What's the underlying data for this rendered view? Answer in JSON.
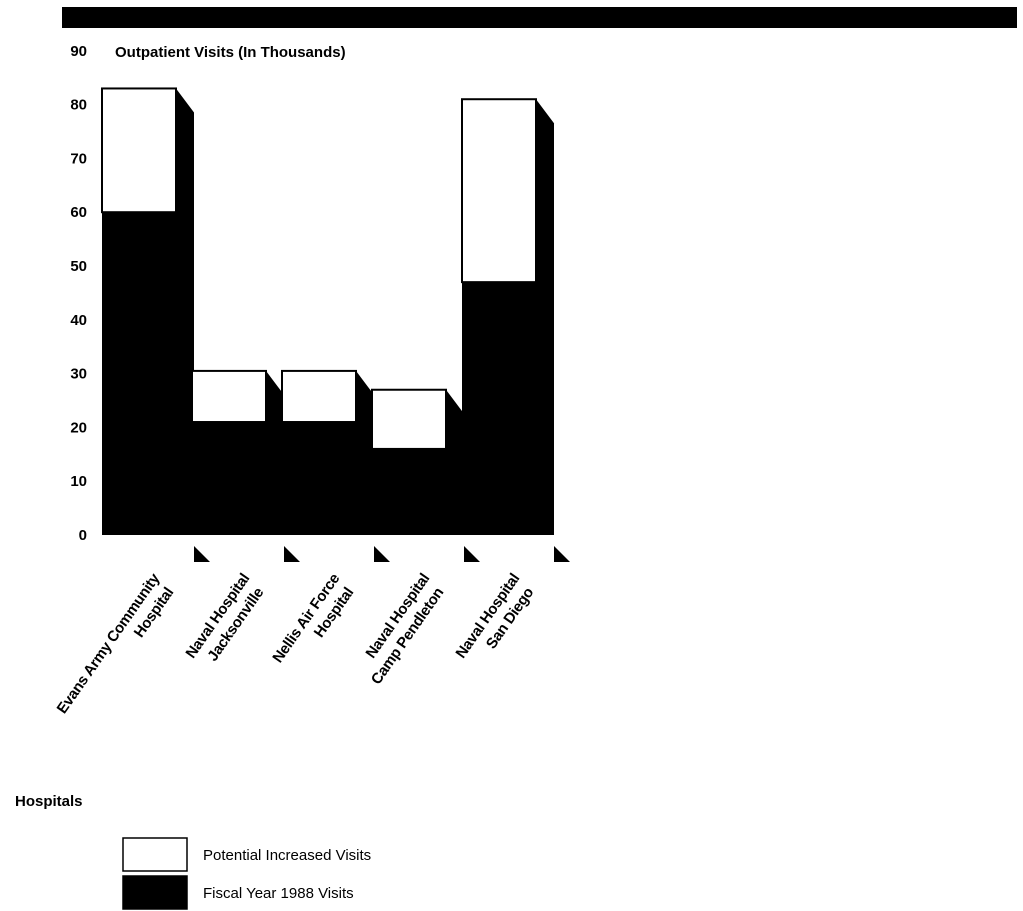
{
  "chart_data": {
    "type": "bar",
    "stacked": true,
    "ylabel": "Outpatient Visits (In Thousands)",
    "xlabel": "Hospitals",
    "ylim": [
      0,
      90
    ],
    "yticks": [
      0,
      10,
      20,
      30,
      40,
      50,
      60,
      70,
      80,
      90
    ],
    "categories": [
      [
        "Evans Army Community",
        "Hospital"
      ],
      [
        "Naval Hospital",
        "Jacksonville"
      ],
      [
        "Nellis Air Force",
        "Hospital"
      ],
      [
        "Naval Hospital",
        "Camp Pendleton"
      ],
      [
        "Naval Hospital",
        "San Diego"
      ]
    ],
    "series": [
      {
        "name": "Fiscal Year 1988 Visits",
        "color": "#000000",
        "values": [
          60,
          21,
          21,
          16,
          47
        ]
      },
      {
        "name": "Potential Increased Visits",
        "color": "#ffffff",
        "values": [
          23,
          9.5,
          9.5,
          11,
          34
        ]
      }
    ],
    "legend_position": "bottom-left",
    "grid": false
  }
}
